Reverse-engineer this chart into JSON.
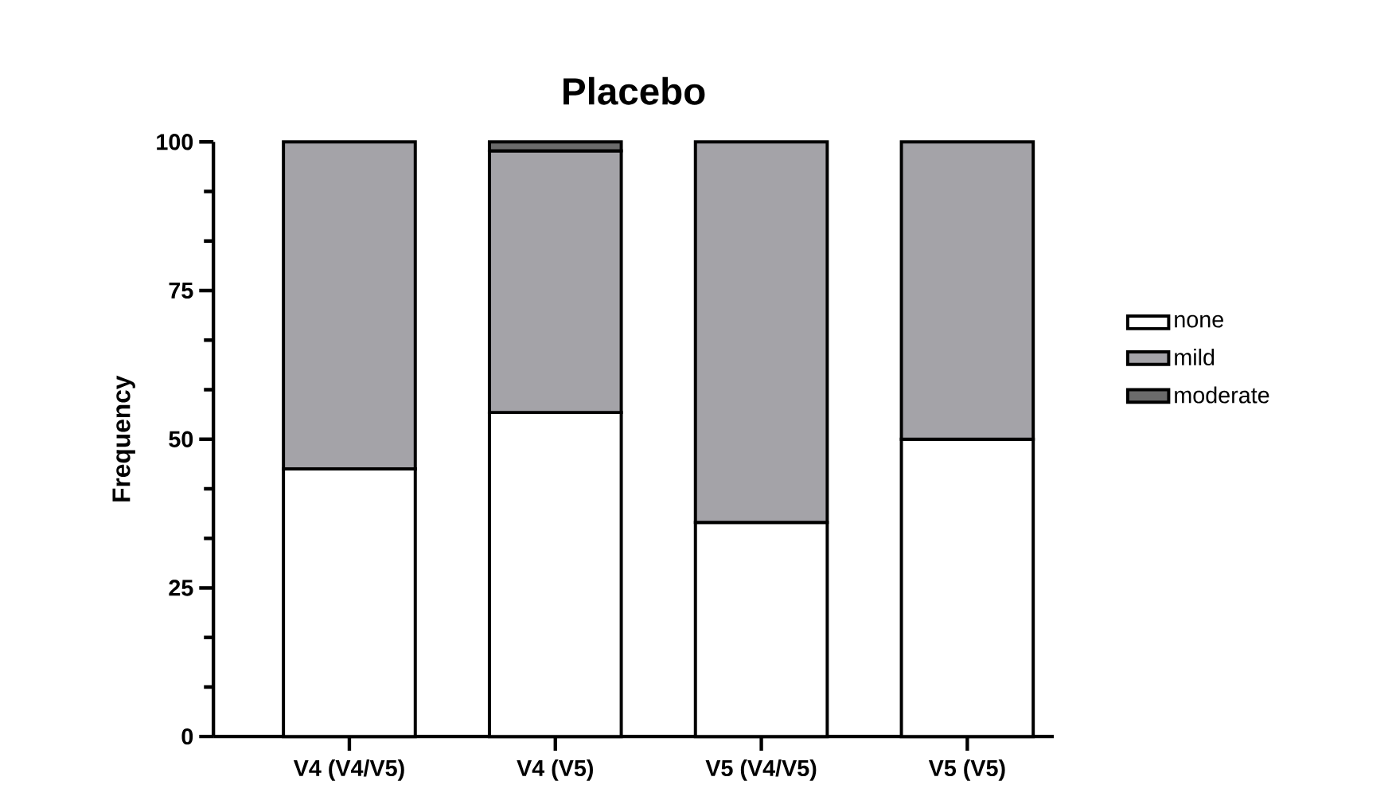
{
  "chart_data": {
    "type": "bar",
    "title": "Placebo",
    "ylabel": "Frequency",
    "categories": [
      "V4 (V4/V5)",
      "V4 (V5)",
      "V5 (V4/V5)",
      "V5 (V5)"
    ],
    "stacked": true,
    "series": [
      {
        "name": "none",
        "color": "#ffffff",
        "values": [
          45,
          54.5,
          36,
          50
        ]
      },
      {
        "name": "mild",
        "color": "#a4a3a8",
        "values": [
          55,
          44,
          64,
          50
        ]
      },
      {
        "name": "moderate",
        "color": "#6b6b6b",
        "values": [
          null,
          1.5,
          null,
          null
        ]
      }
    ],
    "ylim": [
      0,
      100
    ],
    "yticks": [
      0,
      25,
      50,
      75,
      100
    ],
    "grid": false,
    "legend": "right"
  }
}
